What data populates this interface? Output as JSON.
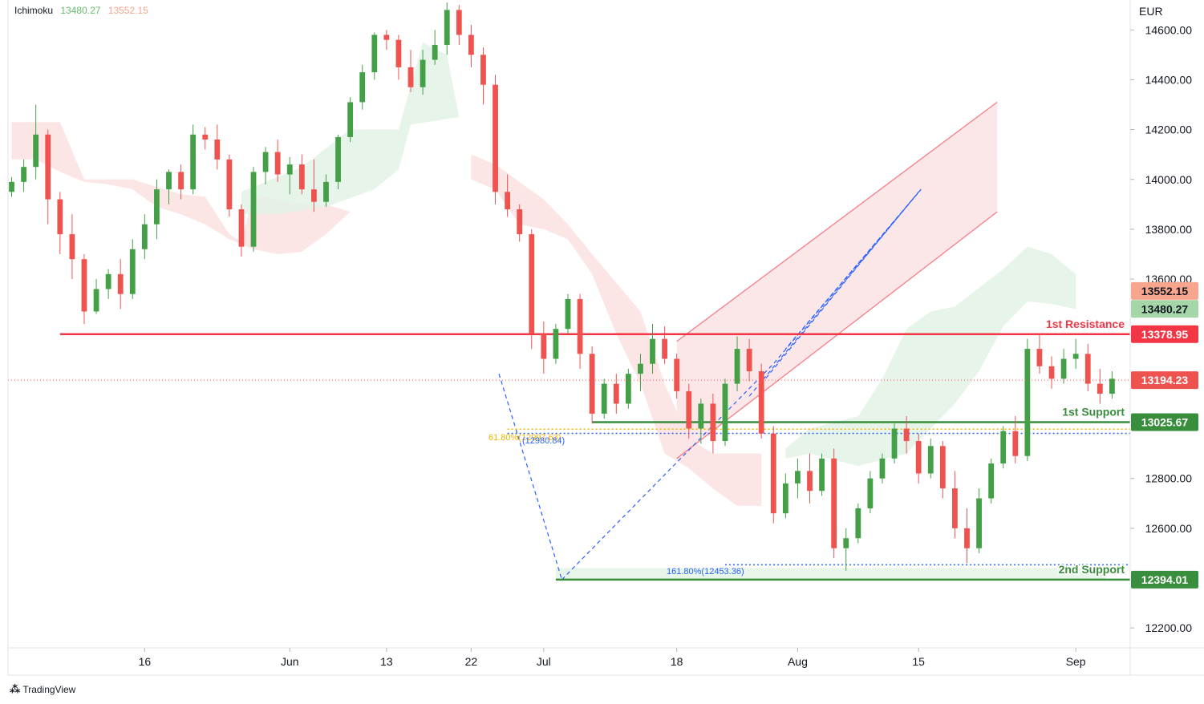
{
  "legend": {
    "indicator": "Ichimoku",
    "value_a": "13480.27",
    "value_b": "13552.15",
    "color_a": "#66bb6a",
    "color_b": "#f7a58c"
  },
  "footer": {
    "brand": "TradingView",
    "logo_icon": "tradingview-logo-icon"
  },
  "colors": {
    "up": "#43a047",
    "down": "#ef5350",
    "resistance": "#f23645",
    "support": "#388e3c",
    "kumo_bear": "#fbe0e0",
    "kumo_bull": "#e3f2e6",
    "channel_fill": "#fce4e6",
    "channel_line": "#f77c86",
    "pattern": "#2962ff",
    "fib_gold": "#f4b400"
  },
  "chart_data": {
    "type": "candlestick",
    "currency": "EUR",
    "ylim": [
      12120,
      14720
    ],
    "yticks": [
      "14600.00",
      "14400.00",
      "14200.00",
      "14000.00",
      "13800.00",
      "13600.00",
      "12800.00",
      "12600.00",
      "12200.00"
    ],
    "yticks_values": [
      14600,
      14400,
      14200,
      14000,
      13800,
      13600,
      12800,
      12600,
      12200
    ],
    "xticks": [
      {
        "label": "16",
        "x": 11
      },
      {
        "label": "Jun",
        "x": 23
      },
      {
        "label": "13",
        "x": 31
      },
      {
        "label": "22",
        "x": 38
      },
      {
        "label": "Jul",
        "x": 44
      },
      {
        "label": "18",
        "x": 55
      },
      {
        "label": "Aug",
        "x": 65
      },
      {
        "label": "15",
        "x": 75
      },
      {
        "label": "Sep",
        "x": 88
      }
    ],
    "x_range": [
      -0.3,
      92.5
    ],
    "candles": [
      [
        13950,
        14010,
        13930,
        13990
      ],
      [
        13990,
        14080,
        13950,
        14050
      ],
      [
        14050,
        14300,
        14000,
        14180
      ],
      [
        14180,
        14200,
        13820,
        13920
      ],
      [
        13920,
        13950,
        13700,
        13780
      ],
      [
        13780,
        13860,
        13600,
        13680
      ],
      [
        13680,
        13700,
        13420,
        13470
      ],
      [
        13470,
        13600,
        13460,
        13560
      ],
      [
        13560,
        13640,
        13520,
        13620
      ],
      [
        13620,
        13680,
        13480,
        13540
      ],
      [
        13540,
        13760,
        13520,
        13720
      ],
      [
        13720,
        13860,
        13680,
        13820
      ],
      [
        13820,
        14000,
        13760,
        13960
      ],
      [
        13960,
        14040,
        13900,
        14030
      ],
      [
        14030,
        14060,
        13920,
        13960
      ],
      [
        13960,
        14220,
        13940,
        14180
      ],
      [
        14180,
        14210,
        14120,
        14160
      ],
      [
        14160,
        14220,
        14040,
        14080
      ],
      [
        14080,
        14100,
        13850,
        13880
      ],
      [
        13880,
        13900,
        13690,
        13730
      ],
      [
        13730,
        14050,
        13710,
        14030
      ],
      [
        14030,
        14130,
        13980,
        14110
      ],
      [
        14110,
        14160,
        13990,
        14020
      ],
      [
        14020,
        14090,
        13940,
        14060
      ],
      [
        14060,
        14100,
        13940,
        13960
      ],
      [
        13960,
        14080,
        13870,
        13910
      ],
      [
        13910,
        14020,
        13890,
        13990
      ],
      [
        13990,
        14180,
        13960,
        14170
      ],
      [
        14170,
        14330,
        14150,
        14310
      ],
      [
        14310,
        14460,
        14280,
        14430
      ],
      [
        14430,
        14590,
        14400,
        14580
      ],
      [
        14580,
        14600,
        14520,
        14560
      ],
      [
        14560,
        14580,
        14400,
        14450
      ],
      [
        14450,
        14520,
        14350,
        14370
      ],
      [
        14370,
        14520,
        14340,
        14480
      ],
      [
        14480,
        14600,
        14460,
        14540
      ],
      [
        14540,
        14710,
        14500,
        14680
      ],
      [
        14680,
        14700,
        14540,
        14580
      ],
      [
        14580,
        14620,
        14450,
        14500
      ],
      [
        14500,
        14530,
        14300,
        14380
      ],
      [
        14380,
        14420,
        13900,
        13950
      ],
      [
        13950,
        14020,
        13850,
        13880
      ],
      [
        13880,
        13900,
        13750,
        13780
      ],
      [
        13780,
        13800,
        13320,
        13380
      ],
      [
        13380,
        13430,
        13220,
        13280
      ],
      [
        13280,
        13420,
        13260,
        13400
      ],
      [
        13400,
        13540,
        13380,
        13520
      ],
      [
        13520,
        13540,
        13240,
        13300
      ],
      [
        13300,
        13330,
        13020,
        13060
      ],
      [
        13060,
        13200,
        13040,
        13180
      ],
      [
        13180,
        13220,
        13060,
        13100
      ],
      [
        13100,
        13240,
        13080,
        13220
      ],
      [
        13220,
        13300,
        13150,
        13260
      ],
      [
        13260,
        13420,
        13220,
        13360
      ],
      [
        13360,
        13410,
        13260,
        13280
      ],
      [
        13280,
        13300,
        13120,
        13150
      ],
      [
        13150,
        13180,
        12960,
        13000
      ],
      [
        13000,
        13120,
        12940,
        13100
      ],
      [
        13100,
        13140,
        12900,
        12950
      ],
      [
        12950,
        13200,
        12930,
        13180
      ],
      [
        13180,
        13370,
        13150,
        13320
      ],
      [
        13320,
        13360,
        13190,
        13230
      ],
      [
        13230,
        13260,
        12960,
        12980
      ],
      [
        12980,
        13010,
        12620,
        12660
      ],
      [
        12660,
        12820,
        12640,
        12780
      ],
      [
        12780,
        12880,
        12720,
        12830
      ],
      [
        12830,
        12900,
        12700,
        12750
      ],
      [
        12750,
        12900,
        12730,
        12880
      ],
      [
        12880,
        12920,
        12480,
        12520
      ],
      [
        12520,
        12600,
        12430,
        12560
      ],
      [
        12560,
        12700,
        12540,
        12680
      ],
      [
        12680,
        12830,
        12660,
        12800
      ],
      [
        12800,
        12900,
        12780,
        12880
      ],
      [
        12880,
        13020,
        12860,
        13000
      ],
      [
        13000,
        13050,
        12900,
        12950
      ],
      [
        12950,
        12980,
        12780,
        12820
      ],
      [
        12820,
        12960,
        12800,
        12930
      ],
      [
        12930,
        12950,
        12720,
        12760
      ],
      [
        12760,
        12830,
        12560,
        12600
      ],
      [
        12600,
        12680,
        12460,
        12520
      ],
      [
        12520,
        12760,
        12500,
        12720
      ],
      [
        12720,
        12880,
        12700,
        12860
      ],
      [
        12860,
        13010,
        12840,
        12990
      ],
      [
        12990,
        13050,
        12860,
        12890
      ],
      [
        12890,
        13360,
        12870,
        13320
      ],
      [
        13320,
        13380,
        13220,
        13250
      ],
      [
        13250,
        13290,
        13160,
        13200
      ],
      [
        13200,
        13320,
        13180,
        13280
      ],
      [
        13280,
        13360,
        13240,
        13300
      ],
      [
        13300,
        13340,
        13150,
        13180
      ],
      [
        13180,
        13240,
        13100,
        13140
      ],
      [
        13140,
        13230,
        13120,
        13200
      ]
    ]
  },
  "levels": [
    {
      "name": "resistance-1",
      "price": 13378.95,
      "badge": "13378.95",
      "label": "1st Resistance",
      "color": "#f23645",
      "start_x": 4
    },
    {
      "name": "support-1",
      "price": 13025.67,
      "badge": "13025.67",
      "label": "1st Support",
      "color": "#388e3c",
      "start_x": 48
    },
    {
      "name": "support-2",
      "price": 12394.01,
      "badge": "12394.01",
      "label": "2nd Support",
      "color": "#388e3c",
      "start_x": 45
    }
  ],
  "badges": [
    {
      "name": "ichimoku-b-badge",
      "price": 13552.15,
      "text": "13552.15",
      "bg": "#f7a58c",
      "fg": "#131722"
    },
    {
      "name": "ichimoku-a-badge",
      "price": 13480.27,
      "text": "13480.27",
      "bg": "#a5d6a7",
      "fg": "#131722"
    },
    {
      "name": "last-price-badge",
      "price": 13194.23,
      "text": "13194.23",
      "bg": "#ef5350",
      "fg": "#ffffff"
    }
  ],
  "last_price": 13194.23,
  "fib_labels": [
    {
      "name": "fib-61-label",
      "text": "61.80%(12997.63)",
      "price": 12997.63,
      "color": "#f4b400"
    },
    {
      "name": "fib-ext-label",
      "text": "(12980.84)",
      "price": 12980.84,
      "color": "#2962ff"
    },
    {
      "name": "fib-161-label",
      "text": "161.80%(12453.36)",
      "price": 12453.36,
      "color": "#2962ff"
    }
  ]
}
